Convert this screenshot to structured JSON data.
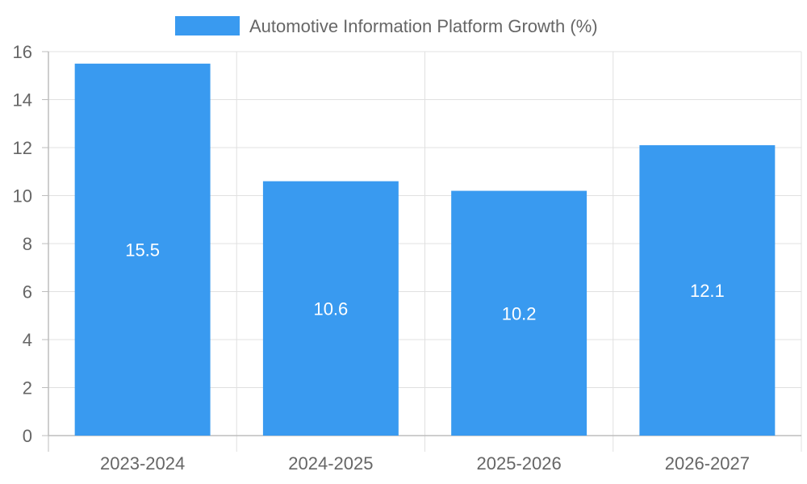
{
  "colors": {
    "bar": "#399AF0",
    "grid": "#e0e0e0",
    "axis": "#bdbdbd",
    "text": "#666666",
    "label": "#ffffff"
  },
  "chart_data": {
    "type": "bar",
    "categories": [
      "2023-2024",
      "2024-2025",
      "2025-2026",
      "2026-2027"
    ],
    "series": [
      {
        "name": "Automotive Information Platform Growth (%)",
        "values": [
          15.5,
          10.6,
          10.2,
          12.1
        ]
      }
    ],
    "data_labels": [
      "15.5",
      "10.6",
      "10.2",
      "12.1"
    ],
    "ylim": [
      0,
      16
    ],
    "yticks": [
      0,
      2,
      4,
      6,
      8,
      10,
      12,
      14,
      16
    ],
    "xlabel": "",
    "ylabel": "",
    "grid": true,
    "legend": "top"
  }
}
